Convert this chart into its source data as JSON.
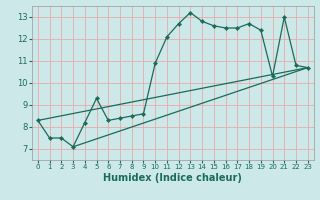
{
  "xlabel": "Humidex (Indice chaleur)",
  "background_color": "#cce8e8",
  "grid_color": "#e8aaaa",
  "line_color": "#1a6b5a",
  "xlim": [
    -0.5,
    23.5
  ],
  "ylim": [
    6.5,
    13.5
  ],
  "xticks": [
    0,
    1,
    2,
    3,
    4,
    5,
    6,
    7,
    8,
    9,
    10,
    11,
    12,
    13,
    14,
    15,
    16,
    17,
    18,
    19,
    20,
    21,
    22,
    23
  ],
  "yticks": [
    7,
    8,
    9,
    10,
    11,
    12,
    13
  ],
  "line1_x": [
    0,
    1,
    2,
    3,
    4,
    5,
    6,
    7,
    8,
    9,
    10,
    11,
    12,
    13,
    14,
    15,
    16,
    17,
    18,
    19,
    20,
    21,
    22,
    23
  ],
  "line1_y": [
    8.3,
    7.5,
    7.5,
    7.1,
    8.2,
    9.3,
    8.3,
    8.4,
    8.5,
    8.6,
    10.9,
    12.1,
    12.7,
    13.2,
    12.8,
    12.6,
    12.5,
    12.5,
    12.7,
    12.4,
    10.3,
    13.0,
    10.8,
    10.7
  ],
  "line2_x": [
    0,
    23
  ],
  "line2_y": [
    8.3,
    10.7
  ],
  "line3_x": [
    3,
    23
  ],
  "line3_y": [
    7.1,
    10.7
  ]
}
